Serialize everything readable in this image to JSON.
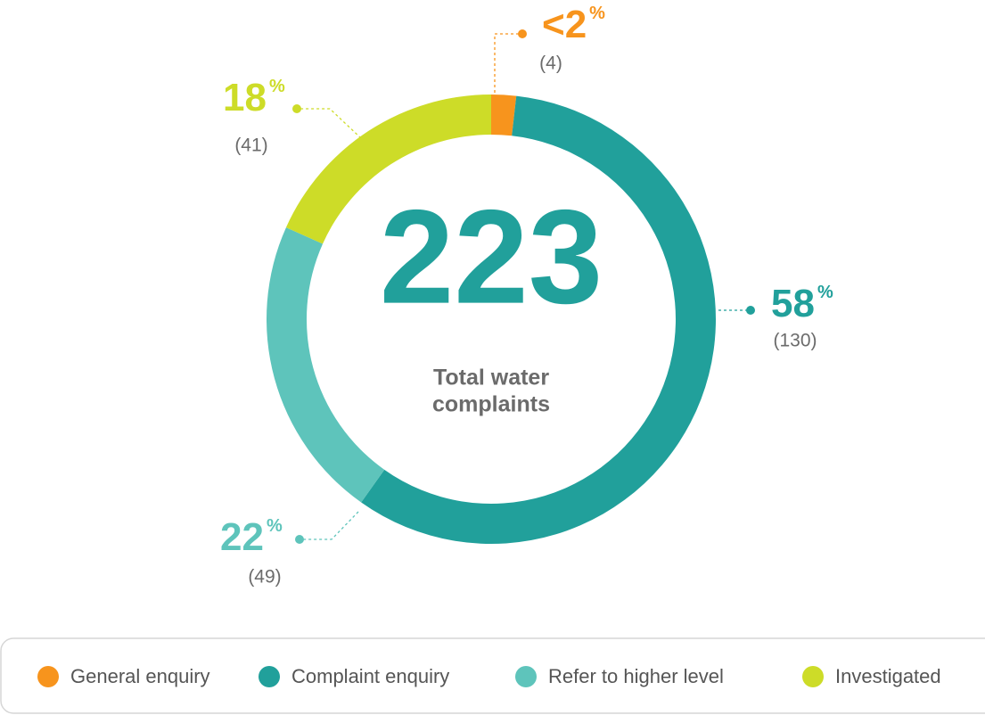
{
  "chart_data": {
    "type": "donut",
    "total": 223,
    "center_label": [
      "Total water",
      "complaints"
    ],
    "categories": [
      "General enquiry",
      "Complaint enquiry",
      "Refer to higher level",
      "Investigated"
    ],
    "values": [
      4,
      130,
      49,
      41
    ],
    "value_labels": [
      "(4)",
      "(130)",
      "(49)",
      "(41)"
    ],
    "percent_labels": [
      "<2",
      "58",
      "22",
      "18"
    ],
    "percent_unit": "%",
    "colors": [
      "#f7941d",
      "#21a09b",
      "#5ec4bb",
      "#cddc28"
    ],
    "legend": "bottom"
  }
}
